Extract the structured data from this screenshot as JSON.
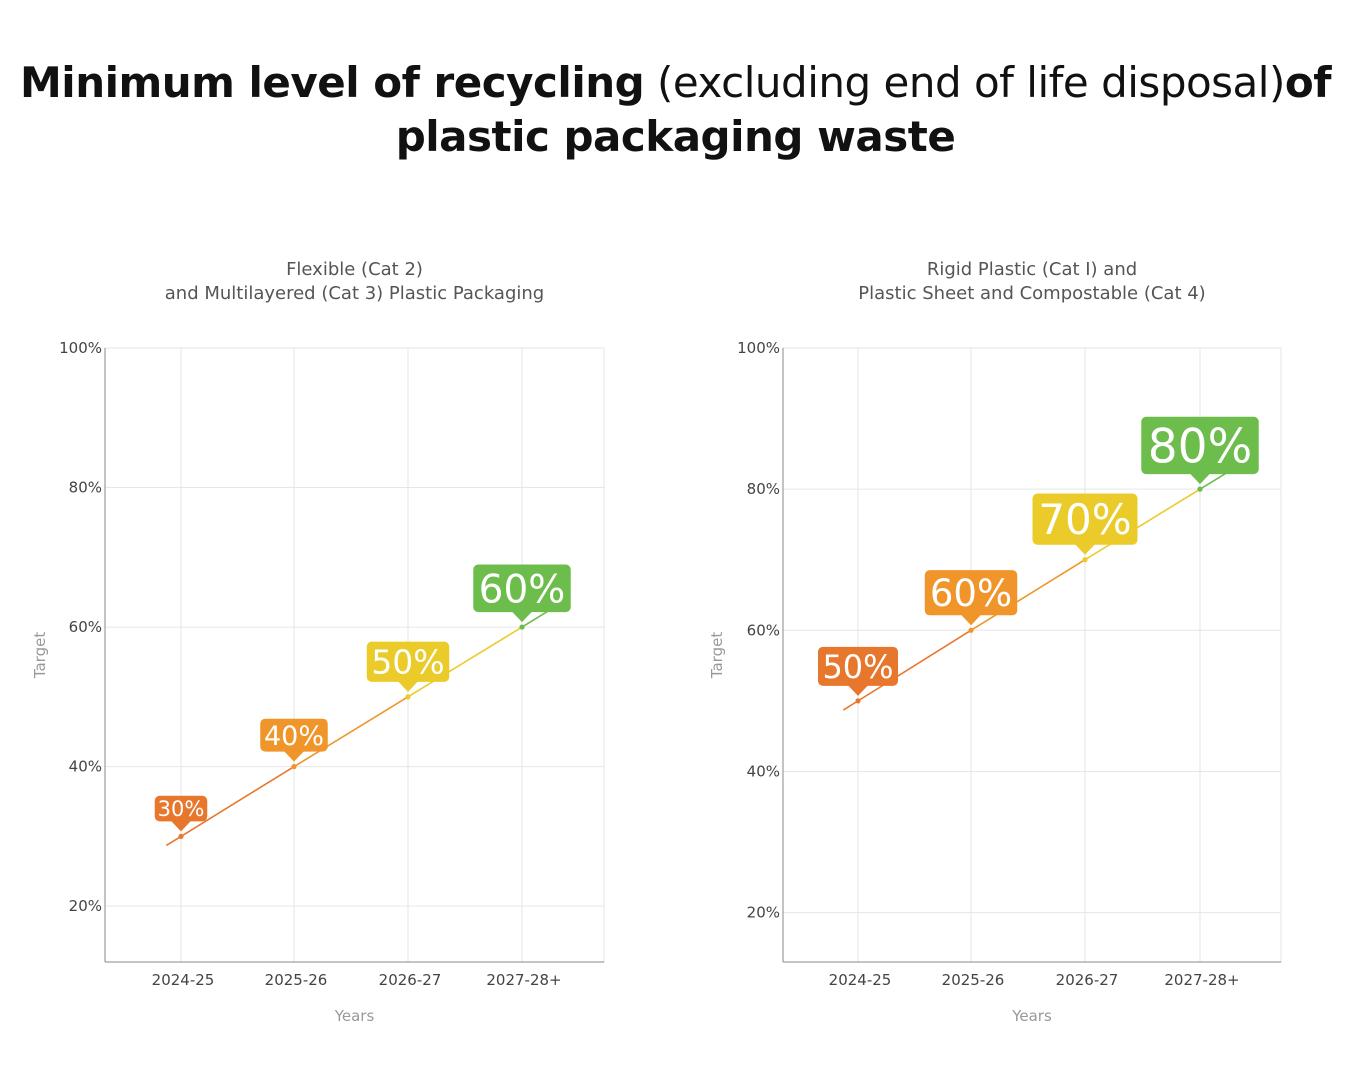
{
  "title": {
    "part1_bold": "Minimum level of recycling",
    "part2_regular": "(excluding end of life disposal)",
    "part3_bold": "of plastic packaging waste"
  },
  "colors": {
    "orange_dark": "#e8772e",
    "orange": "#f0952a",
    "yellow": "#ebcb2a",
    "green": "#6cbd4c",
    "grid": "#e6e6e6"
  },
  "chart_data": [
    {
      "type": "line",
      "title_lines": [
        "Flexible (Cat 2)",
        "and Multilayered (Cat 3) Plastic Packaging"
      ],
      "xlabel": "Years",
      "ylabel": "Target",
      "categories": [
        "2024-25",
        "2025-26",
        "2026-27",
        "2027-28+"
      ],
      "values": [
        30,
        40,
        50,
        60
      ],
      "labels": [
        "30%",
        "40%",
        "50%",
        "60%"
      ],
      "badge_colors": [
        "#e8772e",
        "#f0952a",
        "#ebcb2a",
        "#6cbd4c"
      ],
      "yticks": [
        "100%",
        "80%",
        "60%",
        "40%",
        "20%"
      ],
      "ylim": [
        12,
        100
      ],
      "grid": true
    },
    {
      "type": "line",
      "title_lines": [
        "Rigid Plastic (Cat I) and",
        "Plastic Sheet and Compostable (Cat 4)"
      ],
      "xlabel": "Years",
      "ylabel": "Target",
      "categories": [
        "2024-25",
        "2025-26",
        "2026-27",
        "2027-28+"
      ],
      "values": [
        50,
        60,
        70,
        80
      ],
      "labels": [
        "50%",
        "60%",
        "70%",
        "80%"
      ],
      "badge_colors": [
        "#e8772e",
        "#f0952a",
        "#ebcb2a",
        "#6cbd4c"
      ],
      "yticks": [
        "100%",
        "80%",
        "60%",
        "40%",
        "20%"
      ],
      "ylim": [
        13,
        100
      ],
      "grid": true
    }
  ]
}
